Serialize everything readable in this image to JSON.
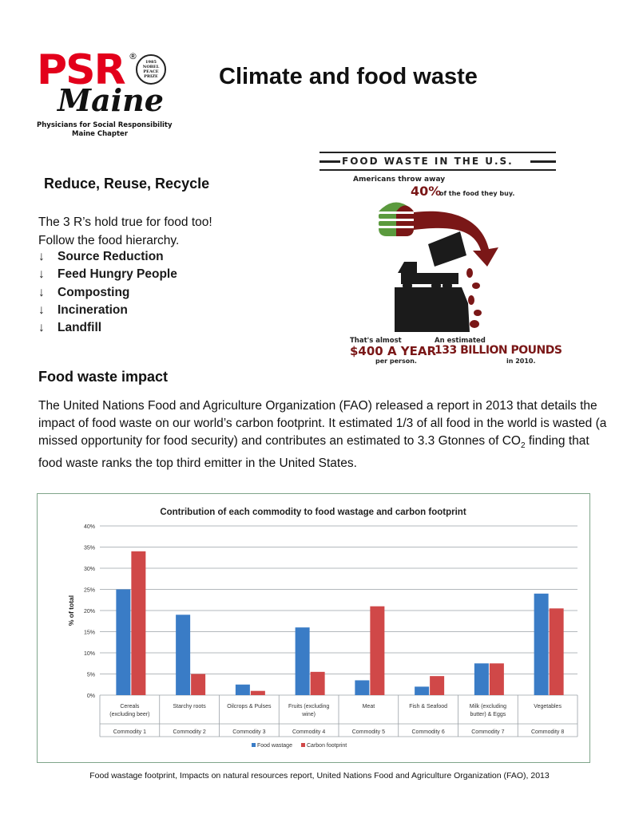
{
  "logo": {
    "brand": "PSR",
    "registered": "®",
    "seal_lines": [
      "1985",
      "NOBEL",
      "PEACE",
      "PRIZE"
    ],
    "chapter": "Maine",
    "subtitle_line1": "Physicians for Social Responsibility",
    "subtitle_line2": "Maine Chapter"
  },
  "page_title": "Climate and food waste",
  "section1": {
    "heading": "Reduce, Reuse, Recycle",
    "intro_line1": "The 3 R’s hold true for food too!",
    "intro_line2": "Follow the food hierarchy.",
    "hierarchy": [
      "Source Reduction",
      "Feed Hungry People",
      "Composting",
      "Incineration",
      "Landfill"
    ],
    "arrow": "↓"
  },
  "infographic": {
    "title": "FOOD WASTE IN THE U.S.",
    "throw_label": "Americans throw away",
    "percent": "40%",
    "percent_suffix": "of the food they buy.",
    "stat1_label": "That's almost",
    "stat1_value": "$400 A YEAR",
    "stat1_sub": "per person.",
    "stat2_label": "An estimated",
    "stat2_value": "133 BILLION POUNDS",
    "stat2_sub": "in 2010.",
    "colors": {
      "dark_red": "#7a1717",
      "green": "#5b9a3e",
      "black": "#1b1b1b"
    }
  },
  "section2": {
    "heading": "Food waste impact",
    "body_before_sub": "The United Nations Food and Agriculture Organization (FAO) released a report in 2013 that details the impact of food waste on our world’s carbon footprint. It estimated 1/3 of all food in the world is wasted (a missed opportunity for food security) and contributes an estimated to 3.3 Gtonnes of CO",
    "body_sub": "2",
    "body_after_sub": " finding that food waste ranks the top third emitter in the United States."
  },
  "chart_data": {
    "type": "bar",
    "title": "Contribution of each commodity to food wastage and carbon footprint",
    "ylabel": "% of total",
    "ylim": [
      0,
      40
    ],
    "yticks": [
      "0%",
      "5%",
      "10%",
      "15%",
      "20%",
      "25%",
      "30%",
      "35%",
      "40%"
    ],
    "grid": true,
    "legend_position": "bottom",
    "categories": [
      [
        "Cereals",
        "(excluding beer)"
      ],
      [
        "Starchy roots"
      ],
      [
        "Oilcrops & Pulses"
      ],
      [
        "Fruits (excluding",
        "wine)"
      ],
      [
        "Meat"
      ],
      [
        "Fish & Seafood"
      ],
      [
        "Milk (excluding",
        "butter) & Eggs"
      ],
      [
        "Vegetables"
      ]
    ],
    "groups": [
      "Commodity 1",
      "Commodity 2",
      "Commodity 3",
      "Commodity 4",
      "Commodity 5",
      "Commodity 6",
      "Commodity 7",
      "Commodity 8"
    ],
    "series": [
      {
        "name": "Food wastage",
        "color": "#3a7cc6",
        "values": [
          25,
          19,
          2.5,
          16,
          3.5,
          2,
          7.5,
          24
        ]
      },
      {
        "name": "Carbon footprint",
        "color": "#d04848",
        "values": [
          34,
          5,
          1,
          5.5,
          21,
          4.5,
          7.5,
          20.5
        ]
      }
    ]
  },
  "caption": "Food wastage footprint, Impacts on natural resources report, United Nations Food and Agriculture Organization (FAO), 2013"
}
